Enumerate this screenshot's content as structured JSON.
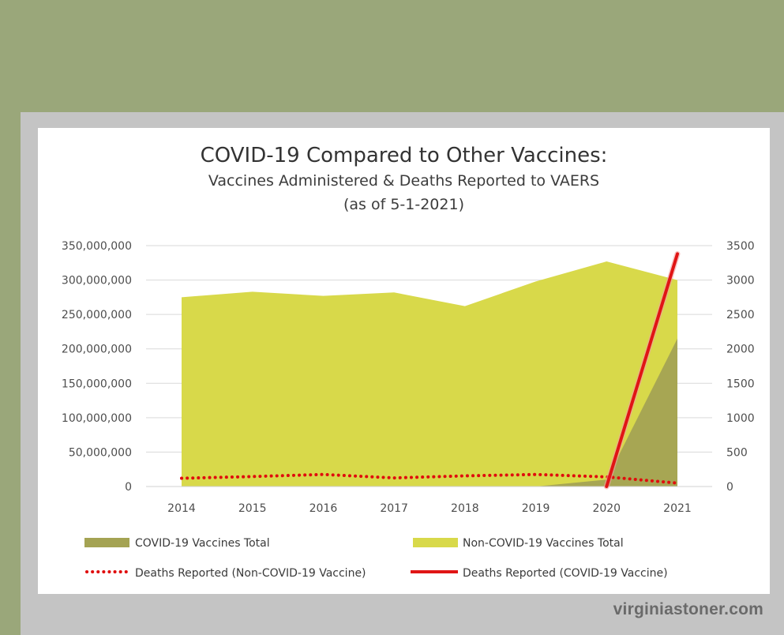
{
  "chart_data": {
    "type": "area",
    "title": "COVID-19 Compared to Other Vaccines:",
    "subtitle": "Vaccines Administered & Deaths Reported to VAERS",
    "subtitle2": "(as of 5-1-2021)",
    "categories": [
      "2014",
      "2015",
      "2016",
      "2017",
      "2018",
      "2019",
      "2020",
      "2021"
    ],
    "y_left": {
      "range": [
        0,
        350000000
      ],
      "ticks": [
        "350,000,000",
        "300,000,000",
        "250,000,000",
        "200,000,000",
        "150,000,000",
        "100,000,000",
        "50,000,000",
        "0"
      ],
      "tick_values": [
        350000000,
        300000000,
        250000000,
        200000000,
        150000000,
        100000000,
        50000000,
        0
      ]
    },
    "y_right": {
      "range": [
        0,
        3500
      ],
      "ticks": [
        "3500",
        "3000",
        "2500",
        "2000",
        "1500",
        "1000",
        "500",
        "0"
      ],
      "tick_values": [
        3500,
        3000,
        2500,
        2000,
        1500,
        1000,
        500,
        0
      ]
    },
    "series": [
      {
        "name": "Non-COVID-19 Vaccines Total",
        "axis": "left",
        "kind": "area",
        "color": "#d8d94a",
        "values": [
          275000000,
          283000000,
          277000000,
          282000000,
          262000000,
          298000000,
          327000000,
          300000000
        ]
      },
      {
        "name": "COVID-19 Vaccines Total",
        "axis": "left",
        "kind": "area",
        "color": "#a4a353",
        "values": [
          0,
          0,
          0,
          0,
          0,
          0,
          10000000,
          215000000
        ]
      },
      {
        "name": "Deaths Reported (Non-COVID-19 Vaccine)",
        "axis": "right",
        "kind": "dotted-line",
        "color": "#e00d0d",
        "values": [
          120,
          145,
          175,
          125,
          155,
          175,
          140,
          50
        ]
      },
      {
        "name": "Deaths Reported (COVID-19 Vaccine)",
        "axis": "right",
        "kind": "line",
        "color": "#e01515",
        "values": [
          null,
          null,
          null,
          null,
          null,
          null,
          0,
          3380
        ]
      }
    ],
    "legend": {
      "covid_total": "COVID-19 Vaccines Total",
      "non_covid_total": "Non-COVID-19 Vaccines Total",
      "deaths_non_covid": "Deaths Reported (Non-COVID-19 Vaccine)",
      "deaths_covid": "Deaths Reported (COVID-19 Vaccine)"
    },
    "grid": true
  },
  "watermark": "virginiastoner.com"
}
